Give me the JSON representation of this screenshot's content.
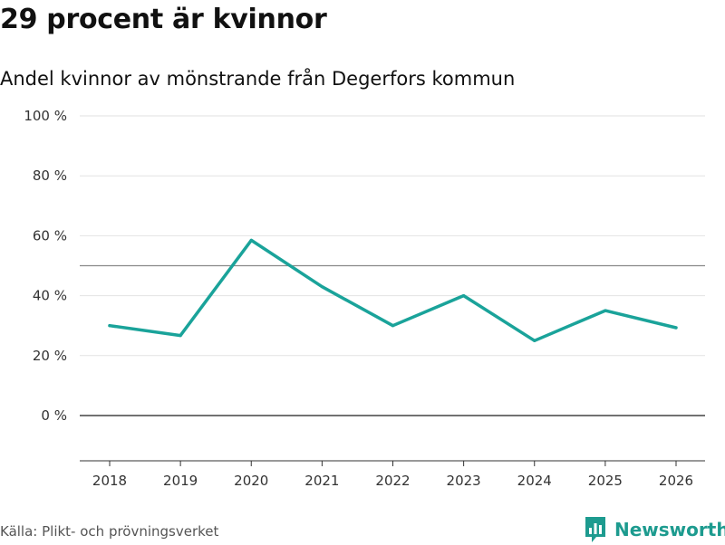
{
  "header": {
    "title": "29 procent är kvinnor",
    "subtitle": "Andel kvinnor av mönstrande från Degerfors kommun"
  },
  "footer": {
    "source": "Källa: Plikt- och prövningsverket",
    "brand": "Newsworthy",
    "brand_icon": "bar-chart-logo-icon"
  },
  "colors": {
    "line": "#1aa39a",
    "grid": "#e2e2e2",
    "reference": "#888888",
    "zero": "#444444",
    "brand": "#1d9b8f"
  },
  "chart_data": {
    "type": "line",
    "title": "29 procent är kvinnor",
    "subtitle": "Andel kvinnor av mönstrande från Degerfors kommun",
    "xlabel": "",
    "ylabel": "",
    "categories": [
      "2018",
      "2019",
      "2020",
      "2021",
      "2022",
      "2023",
      "2024",
      "2025",
      "2026"
    ],
    "series": [
      {
        "name": "Andel kvinnor",
        "values": [
          30,
          26.7,
          58.5,
          43,
          30,
          40,
          25,
          35,
          29.3
        ]
      }
    ],
    "ylim": [
      -15,
      100
    ],
    "yticks": [
      0,
      20,
      40,
      60,
      80,
      100
    ],
    "ytick_labels": [
      "0 %",
      "20 %",
      "40 %",
      "60 %",
      "80 %",
      "100 %"
    ],
    "reference_line": 50,
    "grid": true,
    "legend": "none"
  }
}
